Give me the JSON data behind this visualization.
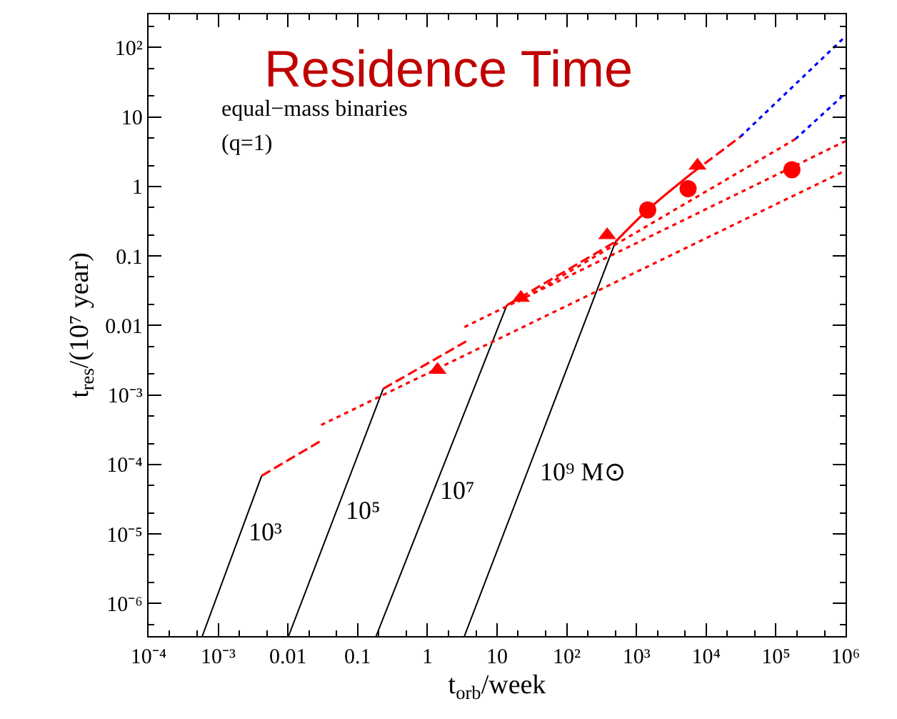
{
  "chart_data": {
    "type": "line",
    "title": "Residence Time",
    "xlabel": "t$_{orb}$/week",
    "ylabel": "t$_{res}$/(10⁷ year)",
    "log": "xy",
    "legend": false,
    "xlim": [
      0.0001,
      1000000
    ],
    "ylim": [
      3.4e-07,
      300
    ],
    "xticks": [
      {
        "value": 0.0001,
        "label": "10⁻⁴"
      },
      {
        "value": 0.001,
        "label": "10⁻³"
      },
      0.01,
      0.1,
      1,
      10,
      {
        "value": 100,
        "label": "10²"
      },
      {
        "value": 1000,
        "label": "10³"
      },
      {
        "value": 10000,
        "label": "10⁴"
      },
      {
        "value": 100000,
        "label": "10⁵"
      },
      {
        "value": 1000000,
        "label": "10⁶"
      }
    ],
    "yticks": [
      {
        "value": 1e-06,
        "label": "10⁻⁶"
      },
      {
        "value": 1e-05,
        "label": "10⁻⁵"
      },
      {
        "value": 0.0001,
        "label": "10⁻⁴"
      },
      {
        "value": 0.001,
        "label": "10⁻³"
      },
      0.01,
      0.1,
      1,
      10,
      {
        "value": 100,
        "label": "10²"
      }
    ],
    "annotations": [
      "equal−mass binaries",
      "(q=1)",
      "10³",
      "10⁵",
      "10⁷",
      "10⁹ M⊙"
    ],
    "series": [
      {
        "color": "#000000",
        "line_style": "solid",
        "marker": "none",
        "x": [
          0.00059,
          0.0042
        ],
        "values": [
          3.4e-07,
          6.9e-05
        ]
      },
      {
        "color": "#000000",
        "line_style": "solid",
        "marker": "none",
        "x": [
          0.0102,
          0.233
        ],
        "values": [
          3.4e-07,
          0.00123
        ]
      },
      {
        "color": "#000000",
        "line_style": "solid",
        "marker": "none",
        "x": [
          0.184,
          13.8
        ],
        "values": [
          3.4e-07,
          0.0195
        ]
      },
      {
        "color": "#000000",
        "line_style": "solid",
        "marker": "none",
        "x": [
          3.4,
          500
        ],
        "values": [
          3.4e-07,
          0.16
        ]
      },
      {
        "color": "#ff0000",
        "line_style": "dashed",
        "marker": "none",
        "x": [
          0.0042,
          0.03
        ],
        "values": [
          6.9e-05,
          0.00022
        ]
      },
      {
        "color": "#ff0000",
        "line_style": "dashed",
        "marker": "none",
        "x": [
          0.233,
          3.6
        ],
        "values": [
          0.00123,
          0.0059
        ]
      },
      {
        "color": "#ff0000",
        "line_style": "dashed",
        "marker": "none",
        "x": [
          13.8,
          500
        ],
        "values": [
          0.0195,
          0.16
        ]
      },
      {
        "color": "#ff0000",
        "line_style": "solid",
        "marker": "none",
        "x": [
          500,
          1450,
          6500
        ],
        "values": [
          0.16,
          0.46,
          1.6
        ]
      },
      {
        "color": "#ff0000",
        "line_style": "dashed",
        "marker": "none",
        "x": [
          6500,
          31000
        ],
        "values": [
          1.6,
          5.2
        ]
      },
      {
        "color": "#0000ff",
        "line_style": "dotted",
        "marker": "none",
        "x": [
          31000,
          1000000
        ],
        "values": [
          5.2,
          145
        ]
      },
      {
        "color": "#ff0000",
        "line_style": "dotted",
        "marker": "none",
        "x": [
          0.03,
          1000000
        ],
        "values": [
          0.00037,
          1.7
        ]
      },
      {
        "color": "#ff0000",
        "line_style": "dotted",
        "marker": "none",
        "x": [
          3.4,
          1000000
        ],
        "values": [
          0.0095,
          4.5
        ]
      },
      {
        "color": "#ff0000",
        "line_style": "dotted",
        "marker": "none",
        "x": [
          20,
          190000
        ],
        "values": [
          0.022,
          4.8
        ]
      },
      {
        "color": "#0000ff",
        "line_style": "dotted",
        "marker": "none",
        "x": [
          190000,
          1000000
        ],
        "values": [
          4.8,
          22
        ]
      },
      {
        "type": "scatter",
        "color": "#ff0000",
        "marker": "triangle",
        "x": [
          1.4,
          22,
          380,
          7500
        ],
        "values": [
          0.0023,
          0.025,
          0.2,
          2.0
        ]
      },
      {
        "type": "scatter",
        "color": "#ff0000",
        "marker": "circle",
        "x": [
          1450,
          5500,
          170000
        ],
        "values": [
          0.46,
          0.93,
          1.74
        ]
      }
    ]
  }
}
